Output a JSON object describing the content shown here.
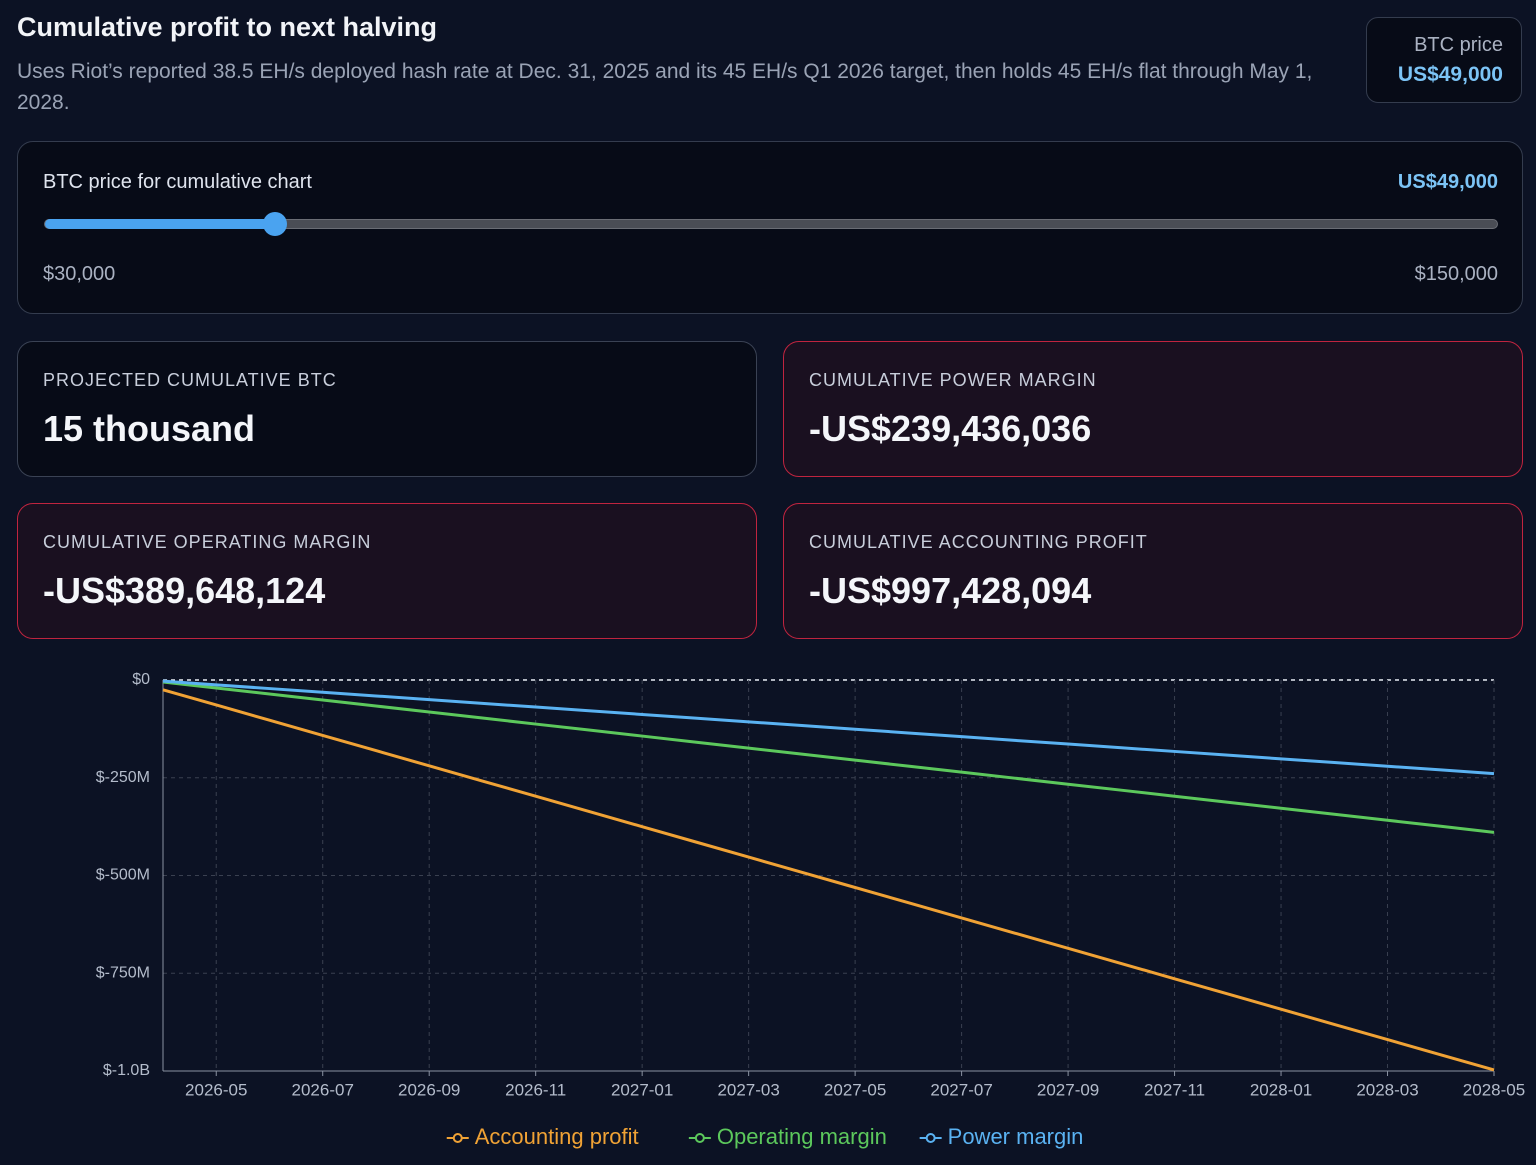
{
  "header": {
    "title": "Cumulative profit to next halving",
    "subtitle": "Uses Riot’s reported 38.5 EH/s deployed hash rate at Dec. 31, 2025 and its 45 EH/s Q1 2026 target, then holds 45 EH/s flat through May 1, 2028.",
    "price_badge": {
      "label": "BTC price",
      "value": "US$49,000"
    }
  },
  "slider": {
    "label": "BTC price for cumulative chart",
    "value": {
      "value": 49000,
      "label": "US$49,000"
    },
    "min": {
      "value": 30000,
      "label": "$30,000"
    },
    "max": {
      "value": 150000,
      "label": "$150,000"
    }
  },
  "cards": [
    {
      "label": "PROJECTED CUMULATIVE BTC",
      "value": "15 thousand"
    },
    {
      "label": "CUMULATIVE POWER MARGIN",
      "value": "-US$239,436,036"
    },
    {
      "label": "CUMULATIVE OPERATING MARGIN",
      "value": "-US$389,648,124"
    },
    {
      "label": "CUMULATIVE ACCOUNTING PROFIT",
      "value": "-US$997,428,094"
    }
  ],
  "chart_data": {
    "type": "line",
    "x": [
      "2026-04",
      "2026-05",
      "2026-06",
      "2026-07",
      "2026-08",
      "2026-09",
      "2026-10",
      "2026-11",
      "2026-12",
      "2027-01",
      "2027-02",
      "2027-03",
      "2027-04",
      "2027-05",
      "2027-06",
      "2027-07",
      "2027-08",
      "2027-09",
      "2027-10",
      "2027-11",
      "2027-12",
      "2028-01",
      "2028-02",
      "2028-03",
      "2028-04",
      "2028-05"
    ],
    "xlim": [
      "2026-04",
      "2028-05"
    ],
    "xticks": [
      "2026-05",
      "2026-07",
      "2026-09",
      "2026-11",
      "2027-01",
      "2027-03",
      "2027-05",
      "2027-07",
      "2027-09",
      "2027-11",
      "2028-01",
      "2028-03",
      "2028-05"
    ],
    "ylim": [
      -1000,
      0
    ],
    "yticks": [
      {
        "value": 0,
        "label": "$0"
      },
      {
        "value": -250,
        "label": "$-250M"
      },
      {
        "value": -500,
        "label": "$-500M"
      },
      {
        "value": -750,
        "label": "$-750M"
      },
      {
        "value": -1000,
        "label": "$-1.0B"
      }
    ],
    "grid": true,
    "series": [
      {
        "name": "Accounting profit",
        "color": "#f0a235",
        "values": [
          -25,
          -63.9,
          -102.8,
          -141.7,
          -180.6,
          -219.5,
          -258.4,
          -297.3,
          -336.2,
          -375.1,
          -414,
          -452.9,
          -491.8,
          -530.7,
          -569.6,
          -608.5,
          -647.4,
          -686.3,
          -725.2,
          -764.1,
          -803,
          -841.9,
          -880.8,
          -919.7,
          -958.6,
          -997.4
        ]
      },
      {
        "name": "Operating margin",
        "color": "#5cc85c",
        "values": [
          -5,
          -20.4,
          -35.8,
          -51.1,
          -66.5,
          -81.9,
          -97.3,
          -112.7,
          -128,
          -143.4,
          -158.8,
          -174.2,
          -189.6,
          -204.9,
          -220.3,
          -235.7,
          -251.1,
          -266.5,
          -281.8,
          -297.2,
          -312.6,
          -328,
          -343.4,
          -358.7,
          -374.1,
          -389.6
        ]
      },
      {
        "name": "Power margin",
        "color": "#5ab2f2",
        "values": [
          -3,
          -12.5,
          -21.9,
          -31.4,
          -40.8,
          -50.3,
          -59.8,
          -69.2,
          -78.7,
          -88.1,
          -97.6,
          -107.1,
          -116.5,
          -126,
          -135.4,
          -144.9,
          -154.4,
          -163.8,
          -173.3,
          -182.7,
          -192.2,
          -201.7,
          -211.1,
          -220.6,
          -230,
          -239.4
        ]
      }
    ]
  }
}
